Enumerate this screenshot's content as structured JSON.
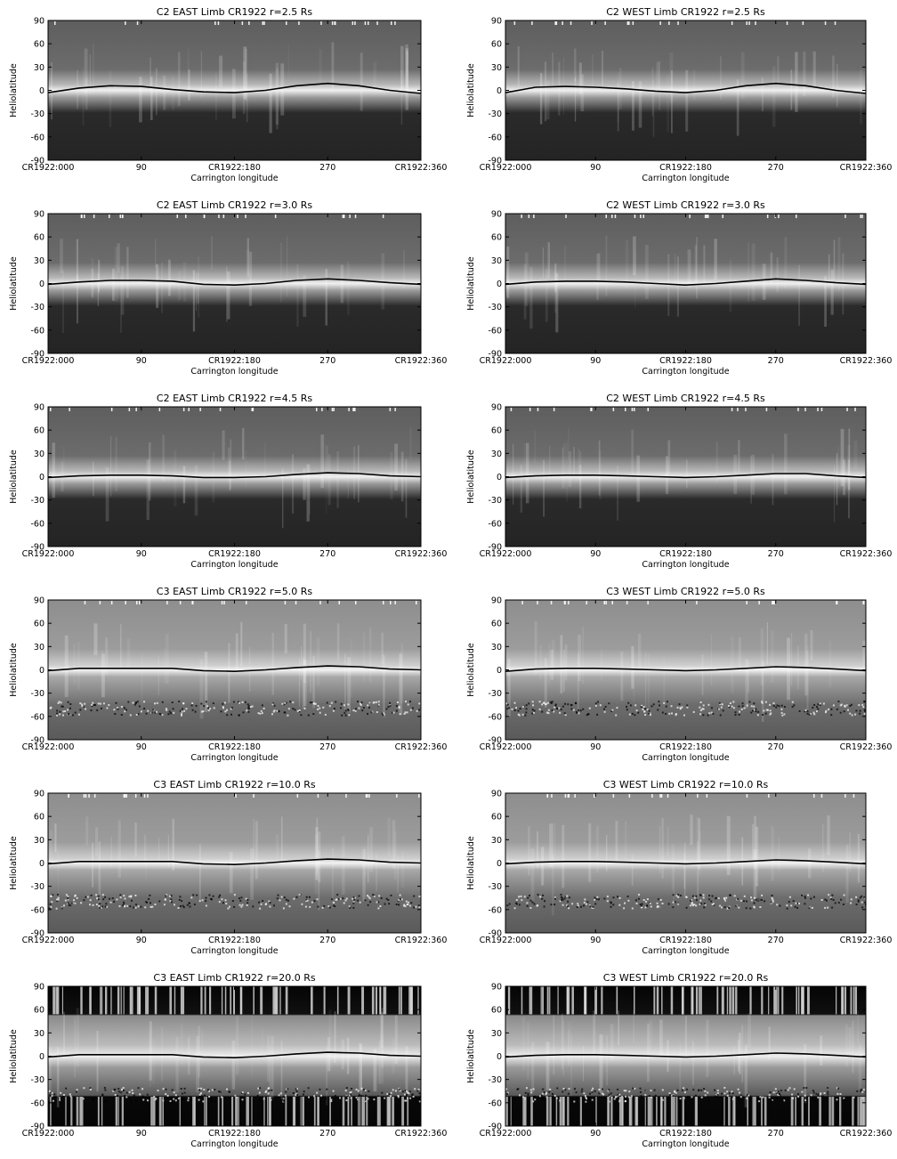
{
  "chart_data": [
    {
      "type": "heatmap",
      "title": "C2 EAST Limb   CR1922   r=2.5 Rs",
      "instrument": "C2",
      "limb": "EAST",
      "rotation": "CR1922",
      "radius": "r=2.5 Rs",
      "ylabel": "Heliolatitude",
      "xlabel": "Carrington longitude",
      "x_ticks": [
        "CR1922:000",
        "90",
        "CR1922:180",
        "270",
        "CR1922:360"
      ],
      "y_ticks": [
        "90",
        "60",
        "30",
        "0",
        "-30",
        "-60",
        "-90"
      ],
      "xlim": [
        0,
        360
      ],
      "ylim": [
        -90,
        90
      ],
      "line": {
        "x": [
          0,
          30,
          60,
          90,
          120,
          150,
          180,
          210,
          240,
          270,
          300,
          330,
          360
        ],
        "y": [
          -3,
          3,
          6,
          5,
          1,
          -2,
          -3,
          0,
          6,
          9,
          6,
          0,
          -4
        ]
      }
    },
    {
      "type": "heatmap",
      "title": "C2 WEST Limb   CR1922   r=2.5 Rs",
      "instrument": "C2",
      "limb": "WEST",
      "rotation": "CR1922",
      "radius": "r=2.5 Rs",
      "ylabel": "Heliolatitude",
      "xlabel": "Carrington longitude",
      "x_ticks": [
        "CR1922:000",
        "90",
        "CR1922:180",
        "270",
        "CR1922:360"
      ],
      "y_ticks": [
        "90",
        "60",
        "30",
        "0",
        "-30",
        "-60",
        "-90"
      ],
      "xlim": [
        0,
        360
      ],
      "ylim": [
        -90,
        90
      ],
      "line": {
        "x": [
          0,
          30,
          60,
          90,
          120,
          150,
          180,
          210,
          240,
          270,
          300,
          330,
          360
        ],
        "y": [
          -3,
          4,
          5,
          4,
          2,
          -1,
          -3,
          0,
          6,
          9,
          6,
          0,
          -4
        ]
      }
    },
    {
      "type": "heatmap",
      "title": "C2 EAST Limb   CR1922   r=3.0 Rs",
      "instrument": "C2",
      "limb": "EAST",
      "rotation": "CR1922",
      "radius": "r=3.0 Rs",
      "ylabel": "Heliolatitude",
      "xlabel": "Carrington longitude",
      "x_ticks": [
        "CR1922:000",
        "90",
        "CR1922:180",
        "270",
        "CR1922:360"
      ],
      "y_ticks": [
        "90",
        "60",
        "30",
        "0",
        "-30",
        "-60",
        "-90"
      ],
      "xlim": [
        0,
        360
      ],
      "ylim": [
        -90,
        90
      ],
      "line": {
        "x": [
          0,
          30,
          60,
          90,
          120,
          150,
          180,
          210,
          240,
          270,
          300,
          330,
          360
        ],
        "y": [
          -1,
          2,
          4,
          4,
          3,
          -1,
          -2,
          0,
          4,
          6,
          4,
          1,
          -1
        ]
      }
    },
    {
      "type": "heatmap",
      "title": "C2 WEST Limb   CR1922   r=3.0 Rs",
      "instrument": "C2",
      "limb": "WEST",
      "rotation": "CR1922",
      "radius": "r=3.0 Rs",
      "ylabel": "Heliolatitude",
      "xlabel": "Carrington longitude",
      "x_ticks": [
        "CR1922:000",
        "90",
        "CR1922:180",
        "270",
        "CR1922:360"
      ],
      "y_ticks": [
        "90",
        "60",
        "30",
        "0",
        "-30",
        "-60",
        "-90"
      ],
      "xlim": [
        0,
        360
      ],
      "ylim": [
        -90,
        90
      ],
      "line": {
        "x": [
          0,
          30,
          60,
          90,
          120,
          150,
          180,
          210,
          240,
          270,
          300,
          330,
          360
        ],
        "y": [
          -1,
          2,
          3,
          3,
          2,
          0,
          -2,
          0,
          3,
          6,
          4,
          1,
          -1
        ]
      }
    },
    {
      "type": "heatmap",
      "title": "C2 EAST Limb   CR1922   r=4.5 Rs",
      "instrument": "C2",
      "limb": "EAST",
      "rotation": "CR1922",
      "radius": "r=4.5 Rs",
      "ylabel": "Heliolatitude",
      "xlabel": "Carrington longitude",
      "x_ticks": [
        "CR1922:000",
        "90",
        "CR1922:180",
        "270",
        "CR1922:360"
      ],
      "y_ticks": [
        "90",
        "60",
        "30",
        "0",
        "-30",
        "-60",
        "-90"
      ],
      "xlim": [
        0,
        360
      ],
      "ylim": [
        -90,
        90
      ],
      "line": {
        "x": [
          0,
          30,
          60,
          90,
          120,
          150,
          180,
          210,
          240,
          270,
          300,
          330,
          360
        ],
        "y": [
          -1,
          1,
          2,
          2,
          1,
          -1,
          -1,
          0,
          3,
          5,
          4,
          1,
          0
        ]
      }
    },
    {
      "type": "heatmap",
      "title": "C2 WEST Limb   CR1922   r=4.5 Rs",
      "instrument": "C2",
      "limb": "WEST",
      "rotation": "CR1922",
      "radius": "r=4.5 Rs",
      "ylabel": "Heliolatitude",
      "xlabel": "Carrington longitude",
      "x_ticks": [
        "CR1922:000",
        "90",
        "CR1922:180",
        "270",
        "CR1922:360"
      ],
      "y_ticks": [
        "90",
        "60",
        "30",
        "0",
        "-30",
        "-60",
        "-90"
      ],
      "xlim": [
        0,
        360
      ],
      "ylim": [
        -90,
        90
      ],
      "line": {
        "x": [
          0,
          30,
          60,
          90,
          120,
          150,
          180,
          210,
          240,
          270,
          300,
          330,
          360
        ],
        "y": [
          -1,
          1,
          2,
          2,
          1,
          0,
          -1,
          0,
          2,
          4,
          4,
          1,
          -1
        ]
      }
    },
    {
      "type": "heatmap",
      "title": "C3 EAST Limb   CR1922   r=5.0 Rs",
      "instrument": "C3",
      "limb": "EAST",
      "rotation": "CR1922",
      "radius": "r=5.0 Rs",
      "ylabel": "Heliolatitude",
      "xlabel": "Carrington longitude",
      "x_ticks": [
        "CR1922:000",
        "90",
        "CR1922:180",
        "270",
        "CR1922:360"
      ],
      "y_ticks": [
        "90",
        "60",
        "30",
        "0",
        "-30",
        "-60",
        "-90"
      ],
      "xlim": [
        0,
        360
      ],
      "ylim": [
        -90,
        90
      ],
      "line": {
        "x": [
          0,
          30,
          60,
          90,
          120,
          150,
          180,
          210,
          240,
          270,
          300,
          330,
          360
        ],
        "y": [
          -1,
          2,
          2,
          2,
          2,
          -1,
          -2,
          0,
          3,
          5,
          4,
          1,
          0
        ]
      }
    },
    {
      "type": "heatmap",
      "title": "C3 WEST Limb   CR1922   r=5.0 Rs",
      "instrument": "C3",
      "limb": "WEST",
      "rotation": "CR1922",
      "radius": "r=5.0 Rs",
      "ylabel": "Heliolatitude",
      "xlabel": "Carrington longitude",
      "x_ticks": [
        "CR1922:000",
        "90",
        "CR1922:180",
        "270",
        "CR1922:360"
      ],
      "y_ticks": [
        "90",
        "60",
        "30",
        "0",
        "-30",
        "-60",
        "-90"
      ],
      "xlim": [
        0,
        360
      ],
      "ylim": [
        -90,
        90
      ],
      "line": {
        "x": [
          0,
          30,
          60,
          90,
          120,
          150,
          180,
          210,
          240,
          270,
          300,
          330,
          360
        ],
        "y": [
          -2,
          1,
          2,
          2,
          1,
          0,
          -1,
          0,
          2,
          4,
          3,
          1,
          -1
        ]
      }
    },
    {
      "type": "heatmap",
      "title": "C3 EAST Limb   CR1922   r=10.0 Rs",
      "instrument": "C3",
      "limb": "EAST",
      "rotation": "CR1922",
      "radius": "r=10.0 Rs",
      "ylabel": "Heliolatitude",
      "xlabel": "Carrington longitude",
      "x_ticks": [
        "CR1922:000",
        "90",
        "CR1922:180",
        "270",
        "CR1922:360"
      ],
      "y_ticks": [
        "90",
        "60",
        "30",
        "0",
        "-30",
        "-60",
        "-90"
      ],
      "xlim": [
        0,
        360
      ],
      "ylim": [
        -90,
        90
      ],
      "line": {
        "x": [
          0,
          30,
          60,
          90,
          120,
          150,
          180,
          210,
          240,
          270,
          300,
          330,
          360
        ],
        "y": [
          -1,
          2,
          2,
          2,
          2,
          -1,
          -2,
          0,
          3,
          5,
          4,
          1,
          0
        ]
      }
    },
    {
      "type": "heatmap",
      "title": "C3 WEST Limb   CR1922   r=10.0 Rs",
      "instrument": "C3",
      "limb": "WEST",
      "rotation": "CR1922",
      "radius": "r=10.0 Rs",
      "ylabel": "Heliolatitude",
      "xlabel": "Carrington longitude",
      "x_ticks": [
        "CR1922:000",
        "90",
        "CR1922:180",
        "270",
        "CR1922:360"
      ],
      "y_ticks": [
        "90",
        "60",
        "30",
        "0",
        "-30",
        "-60",
        "-90"
      ],
      "xlim": [
        0,
        360
      ],
      "ylim": [
        -90,
        90
      ],
      "line": {
        "x": [
          0,
          30,
          60,
          90,
          120,
          150,
          180,
          210,
          240,
          270,
          300,
          330,
          360
        ],
        "y": [
          -1,
          1,
          2,
          2,
          1,
          0,
          -1,
          0,
          2,
          4,
          3,
          1,
          -1
        ]
      }
    },
    {
      "type": "heatmap",
      "title": "C3 EAST Limb   CR1922   r=20.0 Rs",
      "instrument": "C3",
      "limb": "EAST",
      "rotation": "CR1922",
      "radius": "r=20.0 Rs",
      "ylabel": "Heliolatitude",
      "xlabel": "Carrington longitude",
      "x_ticks": [
        "CR1922:000",
        "90",
        "CR1922:180",
        "270",
        "CR1922:360"
      ],
      "y_ticks": [
        "90",
        "60",
        "30",
        "0",
        "-30",
        "-60",
        "-90"
      ],
      "xlim": [
        0,
        360
      ],
      "ylim": [
        -90,
        90
      ],
      "line": {
        "x": [
          0,
          30,
          60,
          90,
          120,
          150,
          180,
          210,
          240,
          270,
          300,
          330,
          360
        ],
        "y": [
          -1,
          2,
          2,
          2,
          2,
          -1,
          -2,
          0,
          3,
          5,
          4,
          1,
          0
        ]
      }
    },
    {
      "type": "heatmap",
      "title": "C3 WEST Limb   CR1922   r=20.0 Rs",
      "instrument": "C3",
      "limb": "WEST",
      "rotation": "CR1922",
      "radius": "r=20.0 Rs",
      "ylabel": "Heliolatitude",
      "xlabel": "Carrington longitude",
      "x_ticks": [
        "CR1922:000",
        "90",
        "CR1922:180",
        "270",
        "CR1922:360"
      ],
      "y_ticks": [
        "90",
        "60",
        "30",
        "0",
        "-30",
        "-60",
        "-90"
      ],
      "xlim": [
        0,
        360
      ],
      "ylim": [
        -90,
        90
      ],
      "line": {
        "x": [
          0,
          30,
          60,
          90,
          120,
          150,
          180,
          210,
          240,
          270,
          300,
          330,
          360
        ],
        "y": [
          -1,
          1,
          2,
          2,
          1,
          0,
          -1,
          0,
          2,
          4,
          3,
          1,
          -1
        ]
      }
    }
  ],
  "colors": {
    "background": "#ffffff",
    "axes": "#000000",
    "neutral_line": "#000000"
  }
}
